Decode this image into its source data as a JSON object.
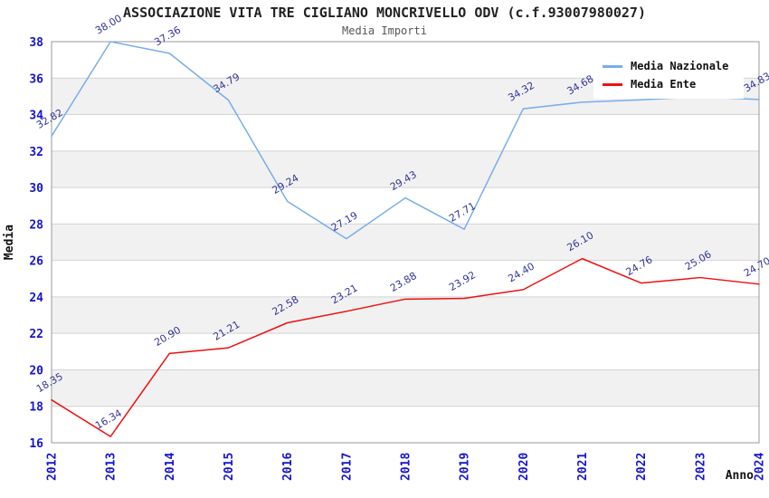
{
  "page": {
    "title": "ASSOCIAZIONE VITA TRE CIGLIANO MONCRIVELLO ODV (c.f.93007980027)",
    "subtitle": "Media Importi"
  },
  "legend": {
    "items": [
      {
        "label": "Media Nazionale",
        "color": "#7aade8"
      },
      {
        "label": "Media Ente",
        "color": "#ee1111"
      }
    ]
  },
  "axes": {
    "y_label": "Media",
    "x_label": "Anno",
    "y_ticks": [
      "38",
      "36",
      "34",
      "32",
      "30",
      "28",
      "26",
      "24",
      "22",
      "20",
      "18",
      "16"
    ],
    "x_ticks": [
      "2012",
      "2013",
      "2014",
      "2015",
      "2016",
      "2017",
      "2018",
      "2019",
      "2020",
      "2021",
      "2022",
      "2023",
      "2024"
    ]
  },
  "colors": {
    "tick_label": "#1515cf",
    "data_label": "#333399",
    "grid_line": "#d4d4d4",
    "plot_border": "#9a9a9a",
    "band_gray": "#f1f1f1",
    "band_white": "#ffffff",
    "series_blue": "#7aade8",
    "series_red": "#ee1111"
  },
  "chart_data": {
    "type": "line",
    "title": "ASSOCIAZIONE VITA TRE CIGLIANO MONCRIVELLO ODV (c.f.93007980027)",
    "subtitle": "Media Importi",
    "xlabel": "Anno",
    "ylabel": "Media",
    "ylim": [
      16,
      38
    ],
    "y_tick_step": 2,
    "grid": "horizontal-bands",
    "legend_position": "top-right",
    "data_labels_visible": true,
    "categories": [
      "2012",
      "2013",
      "2014",
      "2015",
      "2016",
      "2017",
      "2018",
      "2019",
      "2020",
      "2021",
      "2022",
      "2023",
      "2024"
    ],
    "series": [
      {
        "name": "Media Nazionale",
        "color": "#7aade8",
        "values": [
          32.82,
          38.0,
          37.36,
          34.79,
          29.24,
          27.19,
          29.43,
          27.71,
          34.32,
          34.68,
          34.81,
          34.97,
          34.83
        ]
      },
      {
        "name": "Media Ente",
        "color": "#ee1111",
        "values": [
          18.35,
          16.34,
          20.9,
          21.21,
          22.58,
          23.21,
          23.88,
          23.92,
          24.4,
          26.1,
          24.76,
          25.06,
          24.7
        ]
      }
    ]
  }
}
